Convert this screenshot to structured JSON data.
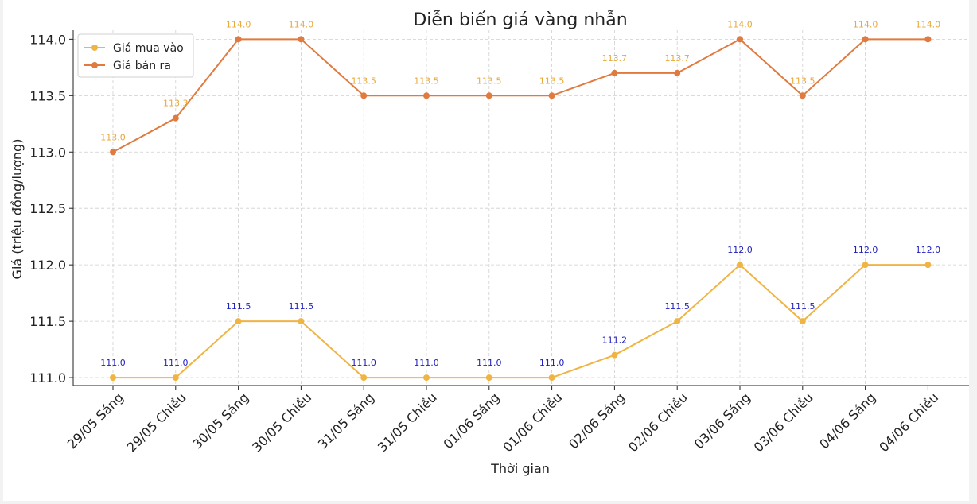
{
  "chart_data": {
    "type": "line",
    "title": "Diễn biến giá vàng nhẫn",
    "xlabel": "Thời gian",
    "ylabel": "Giá (triệu đồng/lượng)",
    "categories": [
      "29/05 Sáng",
      "29/05 Chiều",
      "30/05 Sáng",
      "30/05 Chiều",
      "31/05 Sáng",
      "31/05 Chiều",
      "01/06 Sáng",
      "01/06 Chiều",
      "02/06 Sáng",
      "02/06 Chiều",
      "03/06 Sáng",
      "03/06 Chiều",
      "04/06 Sáng",
      "04/06 Chiều"
    ],
    "yticks": [
      "111.0",
      "111.5",
      "112.0",
      "112.5",
      "113.0",
      "113.5",
      "114.0"
    ],
    "ylim": [
      110.93,
      114.08
    ],
    "grid": true,
    "legend_position": "top-left",
    "series": [
      {
        "name": "Giá mua vào",
        "color": "#f0b443",
        "label_color": "#1f1fbf",
        "values": [
          111.0,
          111.0,
          111.5,
          111.5,
          111.0,
          111.0,
          111.0,
          111.0,
          111.2,
          111.5,
          112.0,
          111.5,
          112.0,
          112.0
        ],
        "labels": [
          "111.0",
          "111.0",
          "111.5",
          "111.5",
          "111.0",
          "111.0",
          "111.0",
          "111.0",
          "111.2",
          "111.5",
          "112.0",
          "111.5",
          "112.0",
          "112.0"
        ]
      },
      {
        "name": "Giá bán ra",
        "color": "#e07a3f",
        "label_color": "#e8a93a",
        "values": [
          113.0,
          113.3,
          114.0,
          114.0,
          113.5,
          113.5,
          113.5,
          113.5,
          113.7,
          113.7,
          114.0,
          113.5,
          114.0,
          114.0
        ],
        "labels": [
          "113.0",
          "113.3",
          "114.0",
          "114.0",
          "113.5",
          "113.5",
          "113.5",
          "113.5",
          "113.7",
          "113.7",
          "114.0",
          "113.5",
          "114.0",
          "114.0"
        ]
      }
    ]
  }
}
